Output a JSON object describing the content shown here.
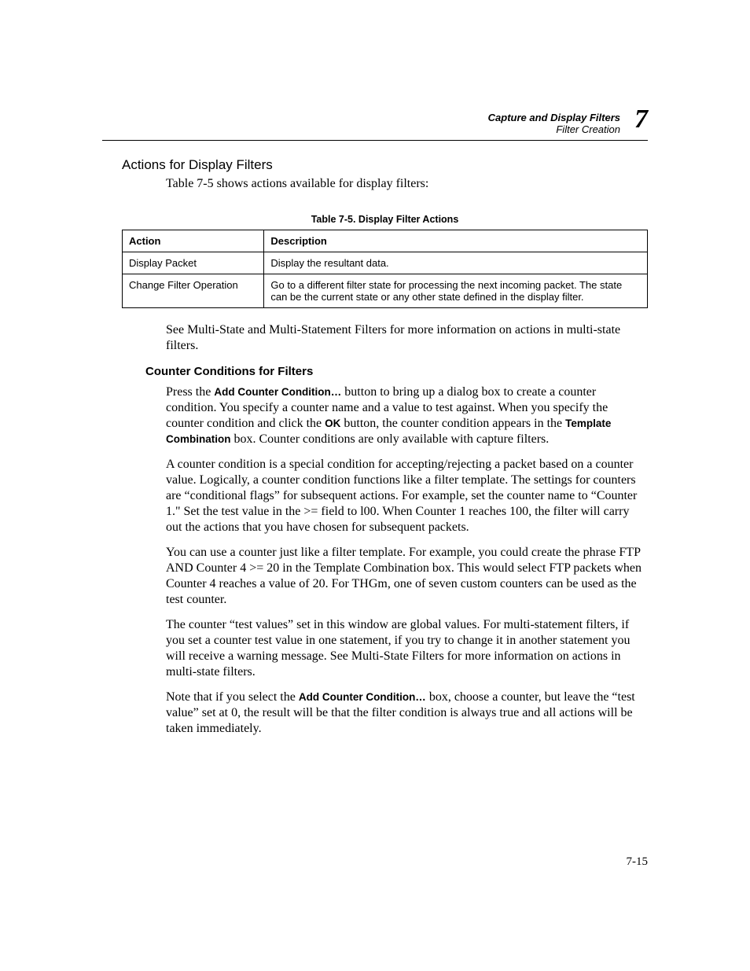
{
  "header": {
    "chapter_title": "Capture and Display Filters",
    "section_title": "Filter Creation",
    "chapter_number": "7"
  },
  "section1": {
    "heading": "Actions for Display Filters",
    "intro": "Table 7-5 shows actions available for display filters:"
  },
  "table": {
    "caption": "Table 7-5. Display Filter Actions",
    "columns": [
      "Action",
      "Description"
    ],
    "rows": [
      [
        "Display Packet",
        "Display the resultant data."
      ],
      [
        "Change Filter Operation",
        "Go to a different filter state for processing the next incoming packet. The state can be the current state or any other state defined in the display filter."
      ]
    ]
  },
  "after_table": "See Multi-State and Multi-Statement Filters for more information on actions in multi-state filters.",
  "section2": {
    "heading": "Counter Conditions for Filters",
    "p1_a": "Press the ",
    "p1_b": "Add Counter Condition…",
    "p1_c": " button to bring up a dialog box to create a counter condition. You specify a counter name and a value to test against. When you specify the counter condition and click the ",
    "p1_d": "OK",
    "p1_e": " button, the counter condition appears in the ",
    "p1_f": "Template Combination",
    "p1_g": " box. Counter conditions are only available with capture filters.",
    "p2": "A counter condition is a special condition for accepting/rejecting a packet based on a counter value. Logically, a counter condition functions like a filter template. The settings for counters are “conditional flags” for subsequent actions. For example, set the counter name to “Counter 1.\" Set the test value in the >= field to l00. When Counter 1  reaches 100, the filter will carry out the actions that you have chosen for subsequent packets.",
    "p3": "You can use a counter just like a filter template. For example, you could create the phrase FTP AND Counter 4 >= 20 in the Template Combination box. This would select FTP packets when Counter 4 reaches a value of 20. For THGm, one of seven custom counters can be used as the test counter.",
    "p4": "The counter “test values” set in this window are global values. For multi-statement filters, if you set a counter test value in one statement, if you try to change it in another statement you will receive a warning message. See Multi-State Filters for more information on actions in multi-state filters.",
    "p5_a": "Note that if you select the ",
    "p5_b": "Add Counter Condition…",
    "p5_c": " box, choose a counter, but leave the “test value” set at 0, the result will be that the filter condition is always true and all actions will be taken immediately."
  },
  "page_number": "7-15"
}
